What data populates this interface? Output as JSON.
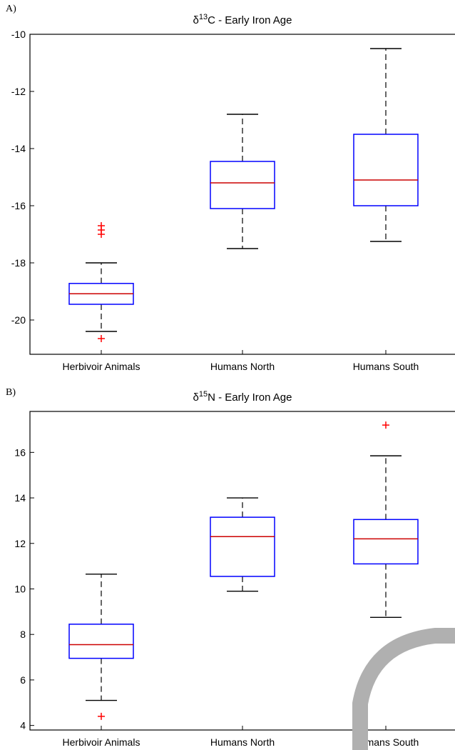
{
  "chart_data": [
    {
      "type": "boxplot",
      "panel_label": "A)",
      "title_prefix": "δ",
      "title_sup": "13",
      "title_rest": "C - Early Iron Age",
      "categories": [
        "Herbivoir Animals",
        "Humans North",
        "Humans South"
      ],
      "ylim": [
        -21.2,
        -10
      ],
      "yticks": [
        -10,
        -12,
        -14,
        -16,
        -18,
        -20
      ],
      "boxes": [
        {
          "whisker_low": -20.4,
          "q1": -19.45,
          "median": -19.08,
          "q3": -18.72,
          "whisker_high": -18.0,
          "outliers": [
            -16.7,
            -16.85,
            -17.0,
            -20.65
          ]
        },
        {
          "whisker_low": -17.5,
          "q1": -16.1,
          "median": -15.2,
          "q3": -14.45,
          "whisker_high": -12.8,
          "outliers": []
        },
        {
          "whisker_low": -17.25,
          "q1": -16.0,
          "median": -15.1,
          "q3": -13.5,
          "whisker_high": -10.5,
          "outliers": []
        }
      ],
      "colors": {
        "box": "#0000ff",
        "median": "#cc0000",
        "outlier": "#ff0000",
        "whisker": "#000000"
      }
    },
    {
      "type": "boxplot",
      "panel_label": "B)",
      "title_prefix": "δ",
      "title_sup": "15",
      "title_rest": "N - Early Iron Age",
      "categories": [
        "Herbivoir Animals",
        "Humans North",
        "Humans South"
      ],
      "ylim": [
        3.8,
        17.8
      ],
      "yticks": [
        4,
        6,
        8,
        10,
        12,
        14,
        16
      ],
      "boxes": [
        {
          "whisker_low": 5.1,
          "q1": 6.95,
          "median": 7.55,
          "q3": 8.45,
          "whisker_high": 10.65,
          "outliers": [
            4.4
          ]
        },
        {
          "whisker_low": 9.9,
          "q1": 10.55,
          "median": 12.3,
          "q3": 13.15,
          "whisker_high": 14.0,
          "outliers": []
        },
        {
          "whisker_low": 8.75,
          "q1": 11.1,
          "median": 12.2,
          "q3": 13.05,
          "whisker_high": 15.85,
          "outliers": [
            17.2
          ]
        }
      ],
      "colors": {
        "box": "#0000ff",
        "median": "#cc0000",
        "outlier": "#ff0000",
        "whisker": "#000000"
      }
    }
  ]
}
